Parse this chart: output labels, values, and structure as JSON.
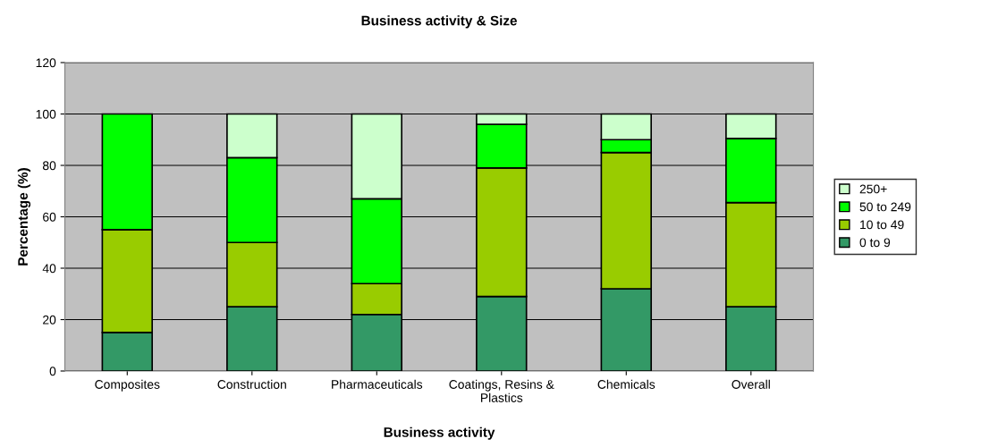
{
  "chart_data": {
    "type": "bar",
    "title": "Business activity & Size",
    "xlabel": "Business activity",
    "ylabel": "Percentage (%)",
    "categories": [
      "Composites",
      "Construction",
      "Pharmaceuticals",
      "Coatings, Resins &\nPlastics",
      "Chemicals",
      "Overall"
    ],
    "stacked": true,
    "series": [
      {
        "name": "0 to 9",
        "color": "#339966",
        "values": [
          15,
          25,
          22,
          29,
          32,
          25
        ]
      },
      {
        "name": "10 to 49",
        "color": "#99cc00",
        "values": [
          40,
          25,
          12,
          50,
          53,
          40.5
        ]
      },
      {
        "name": "50 to 249",
        "color": "#00ff00",
        "values": [
          45,
          33,
          33,
          17,
          5,
          25
        ]
      },
      {
        "name": "250+",
        "color": "#ccffcc",
        "values": [
          null,
          17,
          33,
          4,
          10,
          9.5
        ]
      }
    ],
    "ylim": [
      0,
      120
    ],
    "yticks": [
      0,
      20,
      40,
      60,
      80,
      100,
      120
    ],
    "grid": "y",
    "legend": "right"
  }
}
